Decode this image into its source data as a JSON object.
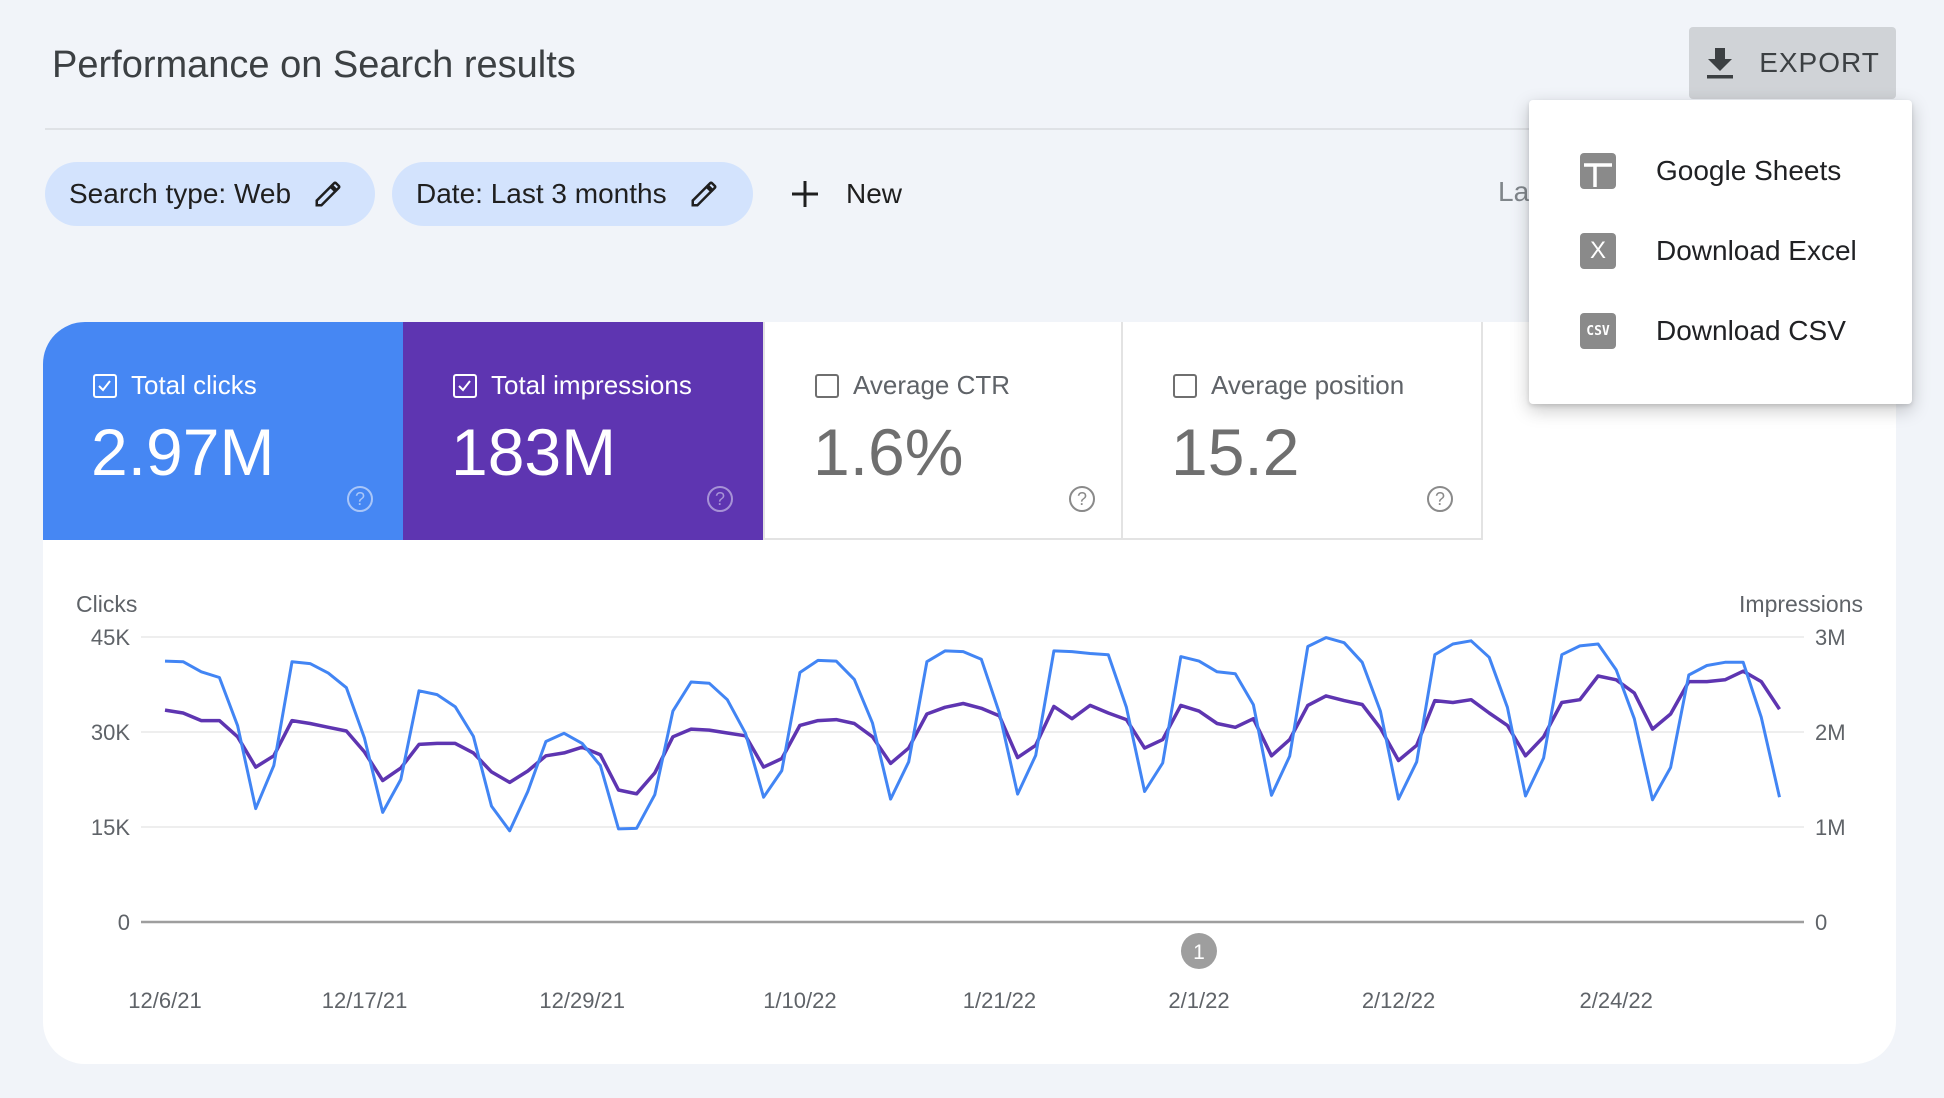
{
  "header": {
    "title": "Performance on Search results",
    "export_label": "EXPORT",
    "export_icon": "download-icon"
  },
  "filters": {
    "chips": [
      {
        "label": "Search type: Web",
        "icon": "pencil-icon"
      },
      {
        "label": "Date: Last 3 months",
        "icon": "pencil-icon"
      }
    ],
    "new_label": "New",
    "partial_text": "La"
  },
  "export_menu": {
    "items": [
      {
        "label": "Google Sheets",
        "icon": "google-sheets-icon"
      },
      {
        "label": "Download Excel",
        "icon": "excel-icon",
        "glyph": "X"
      },
      {
        "label": "Download CSV",
        "icon": "csv-icon",
        "glyph": "CSV"
      }
    ]
  },
  "metrics": [
    {
      "label": "Total clicks",
      "value": "2.97M",
      "checked": true,
      "color": "#4285f4"
    },
    {
      "label": "Total impressions",
      "value": "183M",
      "checked": true,
      "color": "#5e35b1"
    },
    {
      "label": "Average CTR",
      "value": "1.6%",
      "checked": false
    },
    {
      "label": "Average position",
      "value": "15.2",
      "checked": false
    }
  ],
  "chart_data": {
    "type": "line",
    "y_left_label": "Clicks",
    "y_right_label": "Impressions",
    "y_left_ticks": [
      "0",
      "15K",
      "30K",
      "45K"
    ],
    "y_left_range": [
      0,
      45000
    ],
    "y_right_ticks": [
      "0",
      "1M",
      "2M",
      "3M"
    ],
    "y_right_range": [
      0,
      3000000
    ],
    "x_start": "2021-12-06",
    "x_end": "2022-03-05",
    "x_tick_labels": [
      "12/6/21",
      "12/17/21",
      "12/29/21",
      "1/10/22",
      "1/21/22",
      "2/1/22",
      "2/12/22",
      "2/24/22"
    ],
    "x_tick_dates": [
      "2021-12-06",
      "2021-12-17",
      "2021-12-29",
      "2022-01-10",
      "2022-01-21",
      "2022-02-01",
      "2022-02-12",
      "2022-02-24"
    ],
    "annotation": {
      "label": "1",
      "date": "2022-02-01"
    },
    "grid": true,
    "series": [
      {
        "name": "Clicks",
        "axis": "left",
        "color": "#4285f4",
        "values": [
          41200,
          41100,
          39500,
          38600,
          31000,
          17900,
          24700,
          41100,
          40800,
          39300,
          37000,
          29000,
          17300,
          22500,
          36500,
          35900,
          34000,
          29300,
          18300,
          14400,
          20600,
          28500,
          29800,
          28200,
          24700,
          14700,
          14800,
          20100,
          33300,
          37900,
          37700,
          35100,
          29800,
          19700,
          23900,
          39400,
          41300,
          41200,
          38300,
          31400,
          19400,
          25300,
          41100,
          42800,
          42700,
          41500,
          33000,
          20200,
          26300,
          42800,
          42700,
          42400,
          42200,
          33900,
          20600,
          25100,
          41900,
          41200,
          39500,
          39200,
          34300,
          20000,
          26200,
          43500,
          44900,
          44100,
          41000,
          33300,
          19400,
          25300,
          42200,
          43900,
          44400,
          41800,
          33900,
          19900,
          25900,
          42200,
          43600,
          43900,
          39800,
          32100,
          19300,
          24400,
          39000,
          40500,
          41000,
          41000,
          32300,
          19700
        ]
      },
      {
        "name": "Impressions",
        "axis": "right",
        "color": "#5e35b1",
        "values": [
          2230000,
          2200000,
          2120000,
          2120000,
          1950000,
          1630000,
          1750000,
          2120000,
          2090000,
          2050000,
          2010000,
          1790000,
          1490000,
          1620000,
          1870000,
          1880000,
          1880000,
          1780000,
          1580000,
          1470000,
          1590000,
          1750000,
          1780000,
          1840000,
          1760000,
          1390000,
          1350000,
          1570000,
          1950000,
          2030000,
          2020000,
          1990000,
          1960000,
          1630000,
          1720000,
          2070000,
          2120000,
          2130000,
          2090000,
          1950000,
          1670000,
          1830000,
          2190000,
          2260000,
          2300000,
          2250000,
          2170000,
          1730000,
          1860000,
          2270000,
          2140000,
          2280000,
          2200000,
          2130000,
          1830000,
          1920000,
          2280000,
          2220000,
          2090000,
          2050000,
          2140000,
          1750000,
          1920000,
          2280000,
          2380000,
          2330000,
          2290000,
          2040000,
          1700000,
          1860000,
          2330000,
          2310000,
          2340000,
          2200000,
          2070000,
          1750000,
          1950000,
          2310000,
          2340000,
          2590000,
          2550000,
          2410000,
          2030000,
          2190000,
          2530000,
          2530000,
          2550000,
          2640000,
          2530000,
          2240000
        ]
      }
    ]
  }
}
